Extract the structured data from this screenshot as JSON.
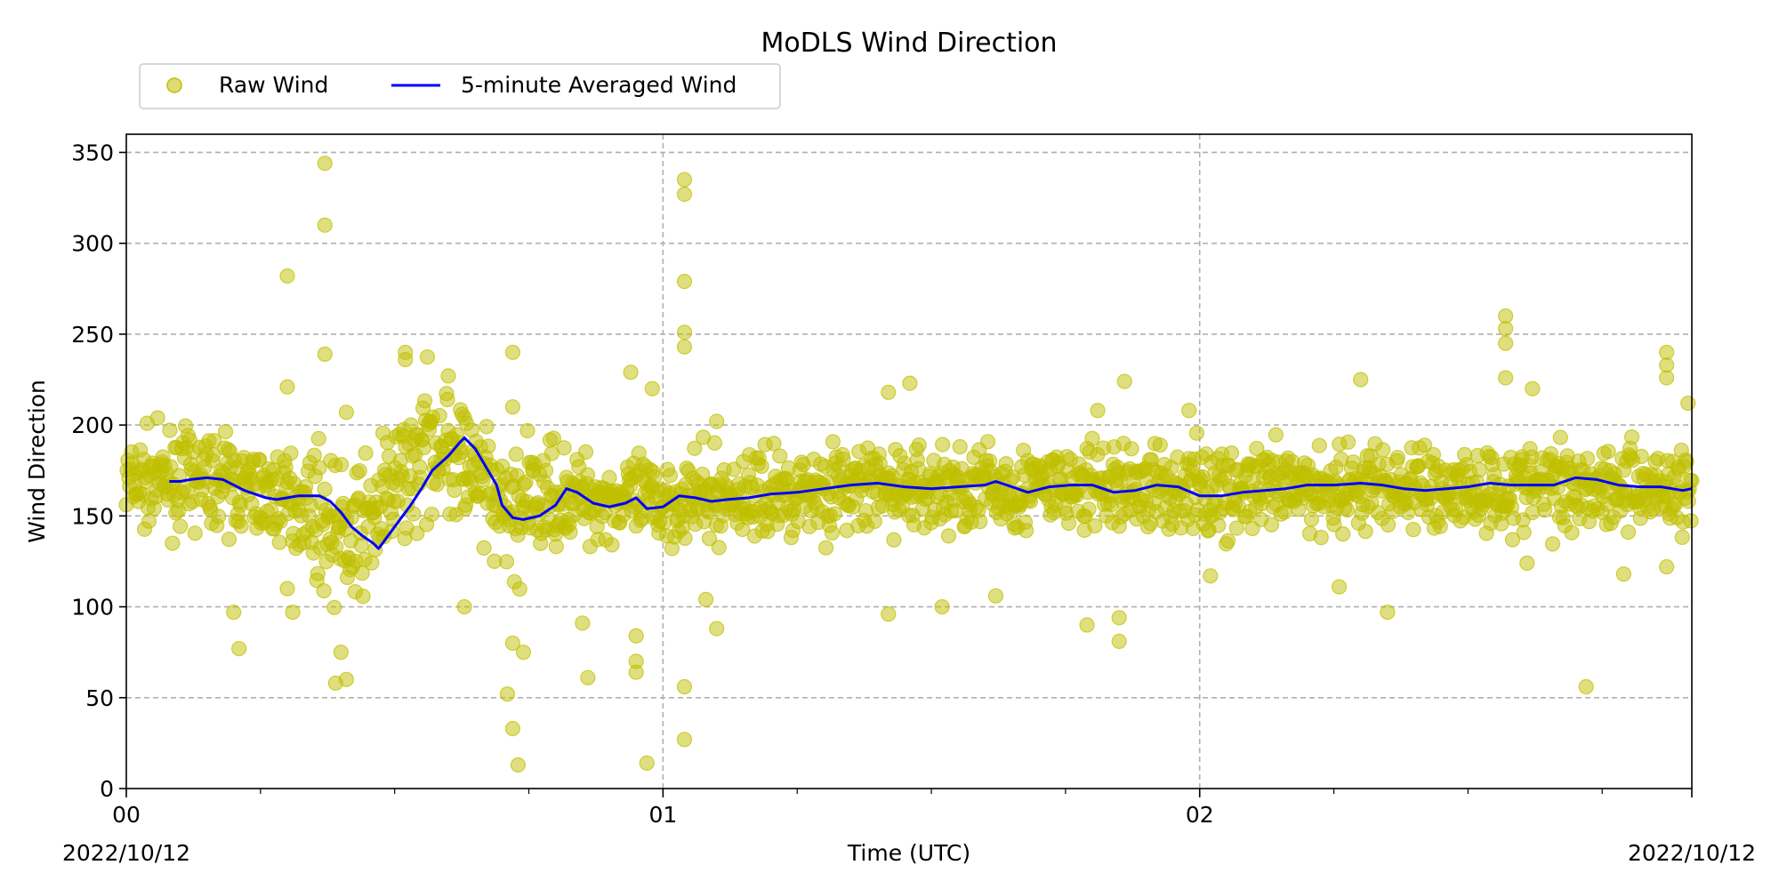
{
  "chart_data": {
    "type": "scatter",
    "title": "MoDLS Wind Direction",
    "xlabel": "Time (UTC)",
    "ylabel": "Wind Direction",
    "x_unit": "hours since 2022/10/12 00:00 UTC",
    "xlim": [
      0,
      2.917
    ],
    "ylim": [
      0,
      360
    ],
    "yticks": [
      0,
      50,
      100,
      150,
      200,
      250,
      300,
      350
    ],
    "xticks": [
      {
        "value": 0,
        "label": "00"
      },
      {
        "value": 1,
        "label": "01"
      },
      {
        "value": 2,
        "label": "02"
      }
    ],
    "x_start_date": "2022/10/12",
    "x_end_date": "2022/10/12",
    "grid": true,
    "legend_position": "top-left",
    "series": [
      {
        "name": "Raw Wind",
        "type": "scatter",
        "color": "#bfbf00",
        "baseline": [
          [
            0.0,
            168
          ],
          [
            0.08,
            170
          ],
          [
            0.17,
            170
          ],
          [
            0.25,
            162
          ],
          [
            0.33,
            158
          ],
          [
            0.42,
            135
          ],
          [
            0.5,
            165
          ],
          [
            0.58,
            195
          ],
          [
            0.7,
            150
          ],
          [
            0.8,
            162
          ],
          [
            0.95,
            158
          ],
          [
            1.1,
            160
          ],
          [
            1.3,
            165
          ],
          [
            1.5,
            165
          ],
          [
            1.7,
            165
          ],
          [
            1.9,
            166
          ],
          [
            2.1,
            163
          ],
          [
            2.3,
            167
          ],
          [
            2.5,
            164
          ],
          [
            2.7,
            168
          ],
          [
            2.917,
            165
          ]
        ],
        "outliers": [
          [
            0.37,
            344
          ],
          [
            0.37,
            310
          ],
          [
            0.3,
            282
          ],
          [
            0.3,
            221
          ],
          [
            0.37,
            239
          ],
          [
            0.41,
            207
          ],
          [
            0.39,
            58
          ],
          [
            0.41,
            60
          ],
          [
            0.4,
            75
          ],
          [
            0.2,
            97
          ],
          [
            0.21,
            77
          ],
          [
            0.3,
            110
          ],
          [
            0.31,
            97
          ],
          [
            0.52,
            240
          ],
          [
            0.52,
            236
          ],
          [
            0.6,
            227
          ],
          [
            0.63,
            204
          ],
          [
            0.63,
            100
          ],
          [
            0.72,
            240
          ],
          [
            0.72,
            210
          ],
          [
            0.73,
            13
          ],
          [
            0.72,
            33
          ],
          [
            0.72,
            80
          ],
          [
            0.71,
            52
          ],
          [
            0.74,
            75
          ],
          [
            0.8,
            140
          ],
          [
            0.85,
            91
          ],
          [
            0.86,
            61
          ],
          [
            0.94,
            229
          ],
          [
            0.95,
            70
          ],
          [
            0.97,
            14
          ],
          [
            0.95,
            64
          ],
          [
            0.95,
            84
          ],
          [
            0.98,
            220
          ],
          [
            1.04,
            335
          ],
          [
            1.04,
            327
          ],
          [
            1.04,
            279
          ],
          [
            1.04,
            251
          ],
          [
            1.04,
            243
          ],
          [
            1.04,
            56
          ],
          [
            1.04,
            27
          ],
          [
            1.08,
            104
          ],
          [
            1.1,
            202
          ],
          [
            1.1,
            88
          ],
          [
            1.42,
            218
          ],
          [
            1.46,
            223
          ],
          [
            1.42,
            96
          ],
          [
            1.52,
            100
          ],
          [
            1.62,
            106
          ],
          [
            1.81,
            208
          ],
          [
            1.79,
            90
          ],
          [
            1.85,
            94
          ],
          [
            1.85,
            81
          ],
          [
            1.86,
            224
          ],
          [
            1.98,
            208
          ],
          [
            2.02,
            117
          ],
          [
            2.26,
            111
          ],
          [
            2.3,
            225
          ],
          [
            2.35,
            97
          ],
          [
            2.57,
            260
          ],
          [
            2.57,
            253
          ],
          [
            2.57,
            245
          ],
          [
            2.57,
            226
          ],
          [
            2.62,
            220
          ],
          [
            2.61,
            124
          ],
          [
            2.72,
            56
          ],
          [
            2.79,
            118
          ],
          [
            2.87,
            240
          ],
          [
            2.87,
            233
          ],
          [
            2.87,
            226
          ],
          [
            2.87,
            122
          ],
          [
            2.91,
            212
          ]
        ]
      },
      {
        "name": "5-minute Averaged Wind",
        "type": "line",
        "color": "#0000ff",
        "points": [
          [
            0.08,
            169
          ],
          [
            0.1,
            169
          ],
          [
            0.12,
            170
          ],
          [
            0.15,
            171
          ],
          [
            0.18,
            170
          ],
          [
            0.2,
            167
          ],
          [
            0.22,
            164
          ],
          [
            0.24,
            162
          ],
          [
            0.26,
            160
          ],
          [
            0.28,
            159
          ],
          [
            0.3,
            160
          ],
          [
            0.32,
            161
          ],
          [
            0.34,
            161
          ],
          [
            0.36,
            161
          ],
          [
            0.38,
            158
          ],
          [
            0.4,
            152
          ],
          [
            0.42,
            144
          ],
          [
            0.44,
            139
          ],
          [
            0.46,
            135
          ],
          [
            0.47,
            132
          ],
          [
            0.49,
            140
          ],
          [
            0.51,
            148
          ],
          [
            0.53,
            156
          ],
          [
            0.55,
            165
          ],
          [
            0.57,
            175
          ],
          [
            0.6,
            183
          ],
          [
            0.62,
            190
          ],
          [
            0.63,
            193
          ],
          [
            0.65,
            187
          ],
          [
            0.67,
            177
          ],
          [
            0.69,
            167
          ],
          [
            0.7,
            156
          ],
          [
            0.72,
            149
          ],
          [
            0.74,
            148
          ],
          [
            0.77,
            150
          ],
          [
            0.8,
            156
          ],
          [
            0.82,
            165
          ],
          [
            0.84,
            163
          ],
          [
            0.87,
            157
          ],
          [
            0.9,
            155
          ],
          [
            0.93,
            157
          ],
          [
            0.95,
            160
          ],
          [
            0.97,
            154
          ],
          [
            1.0,
            155
          ],
          [
            1.03,
            161
          ],
          [
            1.06,
            160
          ],
          [
            1.09,
            158
          ],
          [
            1.12,
            159
          ],
          [
            1.16,
            160
          ],
          [
            1.2,
            162
          ],
          [
            1.25,
            163
          ],
          [
            1.3,
            165
          ],
          [
            1.35,
            167
          ],
          [
            1.4,
            168
          ],
          [
            1.45,
            166
          ],
          [
            1.5,
            165
          ],
          [
            1.55,
            166
          ],
          [
            1.6,
            167
          ],
          [
            1.62,
            169
          ],
          [
            1.65,
            166
          ],
          [
            1.68,
            163
          ],
          [
            1.72,
            166
          ],
          [
            1.76,
            167
          ],
          [
            1.8,
            167
          ],
          [
            1.84,
            163
          ],
          [
            1.88,
            164
          ],
          [
            1.92,
            167
          ],
          [
            1.96,
            166
          ],
          [
            2.0,
            161
          ],
          [
            2.04,
            161
          ],
          [
            2.08,
            163
          ],
          [
            2.12,
            164
          ],
          [
            2.16,
            165
          ],
          [
            2.2,
            167
          ],
          [
            2.25,
            167
          ],
          [
            2.3,
            168
          ],
          [
            2.34,
            167
          ],
          [
            2.38,
            165
          ],
          [
            2.42,
            164
          ],
          [
            2.46,
            165
          ],
          [
            2.5,
            166
          ],
          [
            2.54,
            168
          ],
          [
            2.58,
            167
          ],
          [
            2.62,
            167
          ],
          [
            2.66,
            167
          ],
          [
            2.7,
            171
          ],
          [
            2.74,
            170
          ],
          [
            2.78,
            167
          ],
          [
            2.82,
            166
          ],
          [
            2.86,
            166
          ],
          [
            2.9,
            164
          ],
          [
            2.917,
            165
          ]
        ]
      }
    ]
  }
}
